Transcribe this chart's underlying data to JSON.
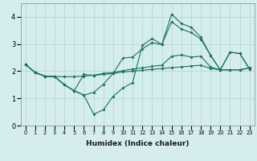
{
  "xlabel": "Humidex (Indice chaleur)",
  "bg_color": "#d5eeed",
  "grid_color": "#b8d8d5",
  "line_color": "#1a7060",
  "xlim": [
    -0.5,
    23.5
  ],
  "ylim": [
    0,
    4.5
  ],
  "xticks": [
    0,
    1,
    2,
    3,
    4,
    5,
    6,
    7,
    8,
    9,
    10,
    11,
    12,
    13,
    14,
    15,
    16,
    17,
    18,
    19,
    20,
    21,
    22,
    23
  ],
  "yticks": [
    0,
    1,
    2,
    3,
    4
  ],
  "line1_x": [
    0,
    1,
    2,
    3,
    4,
    5,
    6,
    7,
    8,
    9,
    10,
    11,
    12,
    13,
    14,
    15,
    16,
    17,
    18,
    19,
    20,
    21,
    22,
    23
  ],
  "line1_y": [
    2.25,
    1.95,
    1.82,
    1.8,
    1.8,
    1.8,
    1.82,
    1.85,
    1.88,
    1.92,
    1.97,
    2.0,
    2.03,
    2.07,
    2.1,
    2.13,
    2.16,
    2.19,
    2.22,
    2.1,
    2.05,
    2.05,
    2.05,
    2.12
  ],
  "line2_x": [
    0,
    1,
    2,
    3,
    4,
    5,
    6,
    7,
    8,
    9,
    10,
    11,
    12,
    13,
    14,
    15,
    16,
    17,
    18,
    19,
    20,
    21,
    22,
    23
  ],
  "line2_y": [
    2.25,
    1.95,
    1.82,
    1.8,
    1.5,
    1.28,
    1.12,
    0.42,
    0.58,
    1.08,
    1.38,
    1.58,
    2.95,
    3.2,
    2.98,
    4.1,
    3.75,
    3.62,
    3.25,
    2.58,
    2.05,
    2.7,
    2.65,
    2.08
  ],
  "line3_x": [
    0,
    1,
    2,
    3,
    4,
    5,
    6,
    7,
    8,
    9,
    10,
    11,
    12,
    13,
    14,
    15,
    16,
    17,
    18,
    19,
    20,
    21,
    22,
    23
  ],
  "line3_y": [
    2.25,
    1.95,
    1.82,
    1.8,
    1.5,
    1.28,
    1.12,
    1.22,
    1.52,
    1.92,
    2.48,
    2.52,
    2.82,
    3.05,
    2.98,
    3.82,
    3.55,
    3.42,
    3.18,
    2.58,
    2.05,
    2.7,
    2.65,
    2.08
  ],
  "line4_x": [
    0,
    1,
    2,
    3,
    4,
    5,
    6,
    7,
    8,
    9,
    10,
    11,
    12,
    13,
    14,
    15,
    16,
    17,
    18,
    19,
    20,
    21,
    22,
    23
  ],
  "line4_y": [
    2.25,
    1.95,
    1.82,
    1.8,
    1.5,
    1.28,
    1.88,
    1.85,
    1.92,
    1.95,
    2.02,
    2.08,
    2.12,
    2.18,
    2.22,
    2.55,
    2.6,
    2.52,
    2.55,
    2.15,
    2.05,
    2.05,
    2.05,
    2.12
  ]
}
